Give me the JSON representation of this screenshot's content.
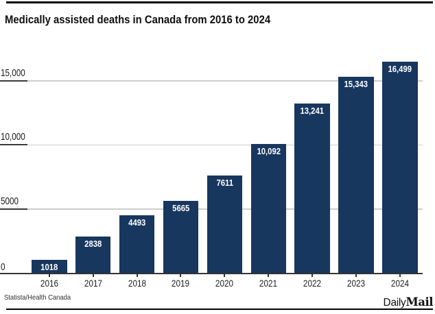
{
  "header": {
    "title": "Medically assisted deaths in Canada from 2016 to 2024"
  },
  "footer": {
    "source": "Statista/Health Canada",
    "brand": {
      "daily": "Daily",
      "mail": "Mail"
    }
  },
  "chart_data": {
    "type": "bar",
    "title": "Medically assisted deaths in Canada from 2016 to 2024",
    "categories": [
      "2016",
      "2017",
      "2018",
      "2019",
      "2020",
      "2021",
      "2022",
      "2023",
      "2024"
    ],
    "values": [
      1018,
      2838,
      4493,
      5665,
      7611,
      10092,
      13241,
      15343,
      16499
    ],
    "bar_labels": [
      "1018",
      "2838",
      "4493",
      "5665",
      "7611",
      "10,092",
      "13,241",
      "15,343",
      "16,499"
    ],
    "ylabel": "",
    "xlabel": "",
    "ylim": [
      0,
      16800
    ],
    "yticks": [
      {
        "value": 0,
        "label": "0"
      },
      {
        "value": 5000,
        "label": "5000"
      },
      {
        "value": 10000,
        "label": "10,000"
      },
      {
        "value": 15000,
        "label": "15,000"
      }
    ],
    "grid": true,
    "legend": false,
    "bar_color": "#18375f",
    "bar_value_label_color": "#ffffff",
    "gridline_color": "#cdcdcd",
    "axis_color": "#333333"
  }
}
